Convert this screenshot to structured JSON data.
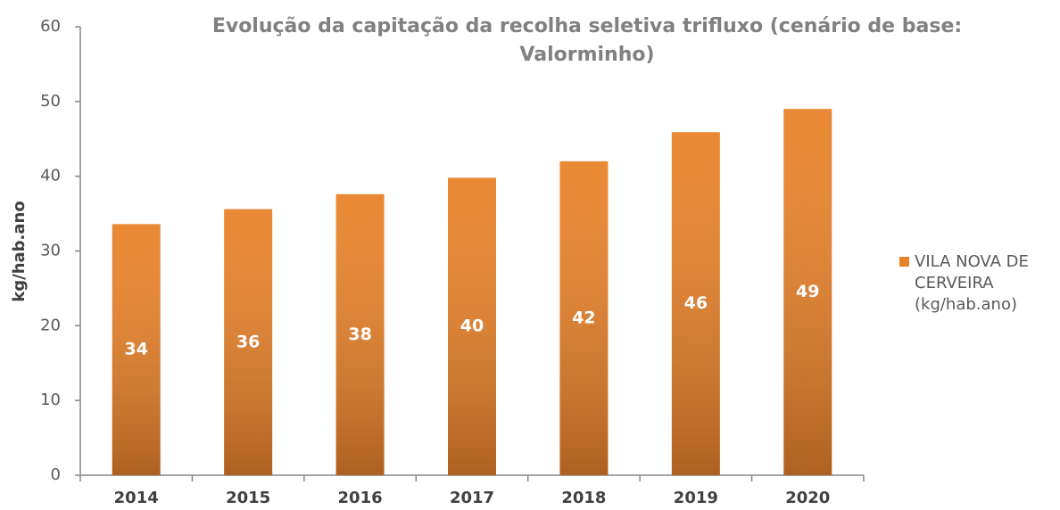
{
  "chart_data": {
    "type": "bar",
    "title": "Evolução da capitação da recolha seletiva trifluxo (cenário de base: Valorminho)",
    "ylabel": "kg/hab.ano",
    "categories": [
      "2014",
      "2015",
      "2016",
      "2017",
      "2018",
      "2019",
      "2020"
    ],
    "series": [
      {
        "name": "VILA NOVA DE CERVEIRA (kg/hab.ano)",
        "color": "#e8822a",
        "values": [
          33.6,
          35.6,
          37.6,
          39.8,
          42,
          45.9,
          49
        ],
        "value_labels": [
          "34",
          "36",
          "38",
          "40",
          "42",
          "46",
          "49"
        ]
      }
    ],
    "ylim": [
      0,
      60
    ],
    "yticks": [
      0,
      10,
      20,
      30,
      40,
      50,
      60
    ],
    "grid": false,
    "legend": "right"
  }
}
